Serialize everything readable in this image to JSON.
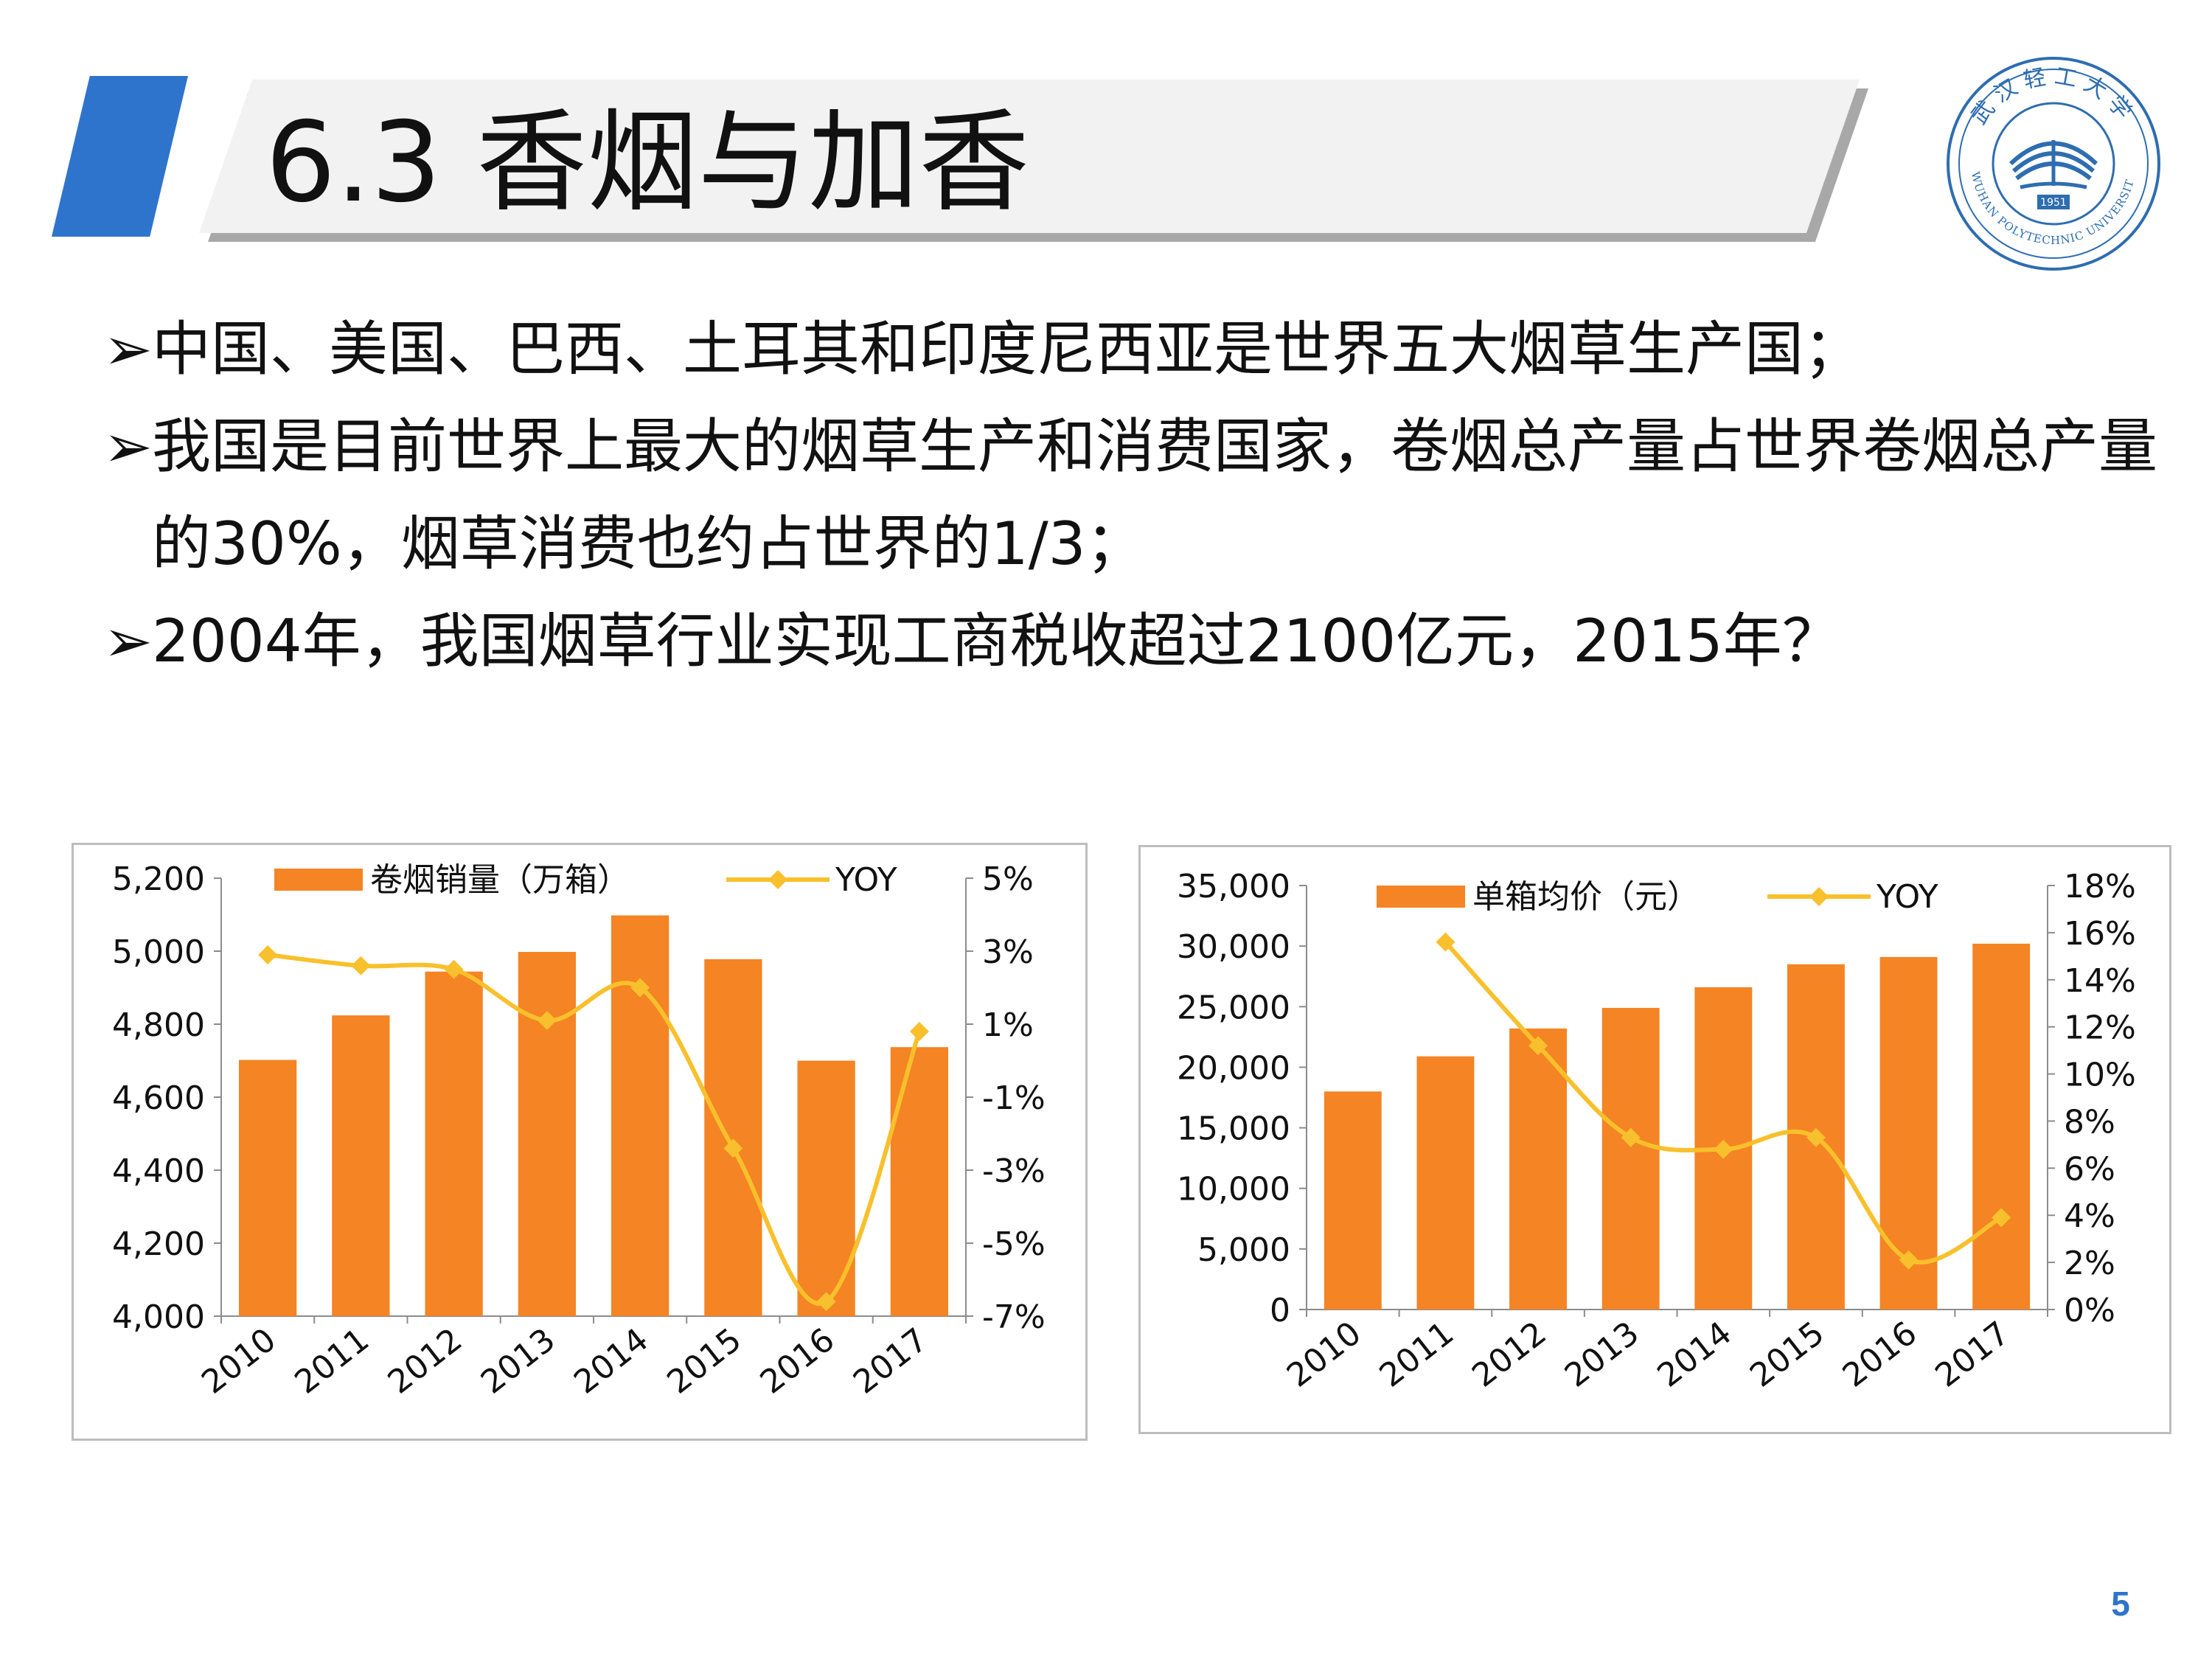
{
  "slide": {
    "title": "6.3 香烟与加香",
    "page_number": "5",
    "colors": {
      "accent": "#2f74cc",
      "bar": "#f48424",
      "line": "#f8c02c",
      "title_bar": "#f2f2f2"
    }
  },
  "bullets": [
    {
      "marker": "➢",
      "text": "中国、美国、巴西、土耳其和印度尼西亚是世界五大烟草生产国；"
    },
    {
      "marker": "➢",
      "text": "我国是目前世界上最大的烟草生产和消费国家，卷烟总产量占世界卷烟总产量的30%，烟草消费也约占世界的1/3；"
    },
    {
      "marker": "➢",
      "text": "2004年，我国烟草行业实现工商税收超过2100亿元，2015年？"
    }
  ],
  "logo": {
    "icon": "university-seal-icon",
    "text_top": "武汉轻工大学",
    "text_bottom": "WUHAN POLYTECHNIC UNIVERSITY",
    "year": "1951"
  },
  "chart_data": [
    {
      "type": "bar",
      "title": "",
      "categories": [
        "2010",
        "2011",
        "2012",
        "2013",
        "2014",
        "2015",
        "2016",
        "2017"
      ],
      "series": [
        {
          "name": "卷烟销量（万箱）",
          "type": "bar",
          "axis": "left",
          "values": [
            4702,
            4824,
            4944,
            4998,
            5098,
            4978,
            4700,
            4737
          ]
        },
        {
          "name": "YOY",
          "type": "line",
          "axis": "right",
          "values": [
            2.9,
            2.6,
            2.5,
            1.1,
            2.0,
            -2.4,
            -6.6,
            0.8
          ]
        }
      ],
      "left_axis": {
        "ylim": [
          4000,
          5200
        ],
        "ticks": [
          4000,
          4200,
          4400,
          4600,
          4800,
          5000,
          5200
        ],
        "tick_labels": [
          "4,000",
          "4,200",
          "4,400",
          "4,600",
          "4,800",
          "5,000",
          "5,200"
        ]
      },
      "right_axis": {
        "ylim": [
          -7,
          5
        ],
        "ticks": [
          -7,
          -5,
          -3,
          -1,
          1,
          3,
          5
        ],
        "tick_labels": [
          "-7%",
          "-5%",
          "-3%",
          "-1%",
          "1%",
          "3%",
          "5%"
        ]
      },
      "legend_position": "top"
    },
    {
      "type": "bar",
      "title": "",
      "categories": [
        "2010",
        "2011",
        "2012",
        "2013",
        "2014",
        "2015",
        "2016",
        "2017"
      ],
      "series": [
        {
          "name": "单箱均价（元）",
          "type": "bar",
          "axis": "left",
          "values": [
            18000,
            20900,
            23200,
            24900,
            26600,
            28500,
            29100,
            30200
          ]
        },
        {
          "name": "YOY",
          "type": "line",
          "axis": "right",
          "values": [
            null,
            15.6,
            11.2,
            7.3,
            6.8,
            7.3,
            2.1,
            3.9
          ]
        }
      ],
      "left_axis": {
        "ylim": [
          0,
          35000
        ],
        "ticks": [
          0,
          5000,
          10000,
          15000,
          20000,
          25000,
          30000,
          35000
        ],
        "tick_labels": [
          "0",
          "5,000",
          "10,000",
          "15,000",
          "20,000",
          "25,000",
          "30,000",
          "35,000"
        ]
      },
      "right_axis": {
        "ylim": [
          0,
          18
        ],
        "ticks": [
          0,
          2,
          4,
          6,
          8,
          10,
          12,
          14,
          16,
          18
        ],
        "tick_labels": [
          "0%",
          "2%",
          "4%",
          "6%",
          "8%",
          "10%",
          "12%",
          "14%",
          "16%",
          "18%"
        ]
      },
      "legend_position": "top"
    }
  ]
}
